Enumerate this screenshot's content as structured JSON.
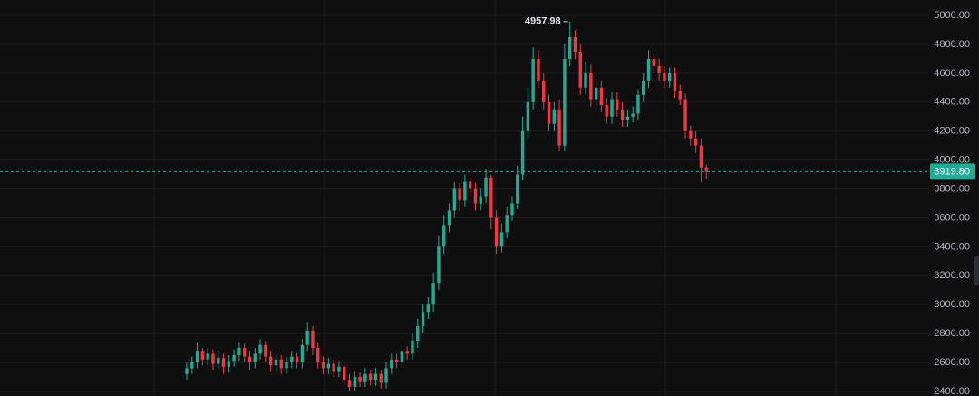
{
  "chart_data": {
    "type": "candlestick",
    "up_color": "#22ab94",
    "down_color": "#f23645",
    "open": [
      2520,
      2560,
      2600,
      2680,
      2620,
      2660,
      2590,
      2630,
      2570,
      2610,
      2650,
      2700,
      2640,
      2600,
      2660,
      2720,
      2640,
      2580,
      2620,
      2560,
      2600,
      2640,
      2600,
      2720,
      2820,
      2700,
      2600,
      2560,
      2590,
      2540,
      2570,
      2480,
      2430,
      2500,
      2470,
      2520,
      2480,
      2520,
      2460,
      2560,
      2620,
      2600,
      2680,
      2660,
      2750,
      2850,
      2950,
      3000,
      3150,
      3400,
      3550,
      3650,
      3800,
      3720,
      3850,
      3800,
      3700,
      3750,
      3880,
      3600,
      3400,
      3500,
      3620,
      3700,
      3900,
      4200,
      4400,
      4700,
      4550,
      4400,
      4250,
      4350,
      4100,
      4700,
      4850,
      4750,
      4500,
      4600,
      4420,
      4500,
      4380,
      4300,
      4420,
      4350,
      4280,
      4300,
      4320,
      4450,
      4550,
      4700,
      4650,
      4600,
      4550,
      4600,
      4480,
      4420,
      4200,
      4150,
      4100,
      3950
    ],
    "high": [
      2600,
      2640,
      2740,
      2700,
      2700,
      2690,
      2680,
      2660,
      2650,
      2690,
      2740,
      2730,
      2680,
      2700,
      2760,
      2750,
      2680,
      2660,
      2650,
      2640,
      2680,
      2670,
      2760,
      2880,
      2850,
      2740,
      2640,
      2630,
      2620,
      2610,
      2600,
      2520,
      2540,
      2530,
      2560,
      2550,
      2560,
      2550,
      2600,
      2660,
      2660,
      2720,
      2710,
      2800,
      2900,
      3000,
      3050,
      3220,
      3480,
      3620,
      3700,
      3850,
      3840,
      3900,
      3880,
      3840,
      3800,
      3940,
      3900,
      3650,
      3560,
      3680,
      3750,
      3960,
      4300,
      4500,
      4780,
      4760,
      4600,
      4450,
      4400,
      4420,
      4800,
      4957.98,
      4900,
      4800,
      4680,
      4660,
      4560,
      4550,
      4430,
      4470,
      4470,
      4400,
      4350,
      4370,
      4490,
      4600,
      4760,
      4740,
      4700,
      4650,
      4640,
      4640,
      4520,
      4460,
      4240,
      4200,
      4150,
      3970
    ],
    "low": [
      2480,
      2520,
      2560,
      2580,
      2580,
      2550,
      2550,
      2520,
      2530,
      2570,
      2610,
      2600,
      2550,
      2560,
      2620,
      2600,
      2540,
      2540,
      2520,
      2520,
      2560,
      2560,
      2560,
      2680,
      2650,
      2560,
      2520,
      2520,
      2500,
      2500,
      2440,
      2400,
      2400,
      2430,
      2430,
      2440,
      2440,
      2420,
      2420,
      2520,
      2560,
      2560,
      2620,
      2620,
      2700,
      2800,
      2900,
      2950,
      3100,
      3350,
      3500,
      3600,
      3650,
      3680,
      3750,
      3650,
      3650,
      3700,
      3520,
      3350,
      3360,
      3460,
      3580,
      3660,
      3860,
      4150,
      4350,
      4500,
      4350,
      4200,
      4200,
      4060,
      4060,
      4650,
      4700,
      4450,
      4450,
      4370,
      4370,
      4330,
      4250,
      4250,
      4300,
      4230,
      4230,
      4260,
      4280,
      4400,
      4500,
      4600,
      4550,
      4500,
      4500,
      4430,
      4380,
      4150,
      4100,
      4050,
      3850,
      3870
    ],
    "close": [
      2560,
      2600,
      2680,
      2620,
      2660,
      2590,
      2630,
      2570,
      2610,
      2650,
      2700,
      2640,
      2600,
      2660,
      2720,
      2640,
      2580,
      2620,
      2560,
      2600,
      2640,
      2600,
      2720,
      2820,
      2700,
      2600,
      2560,
      2590,
      2540,
      2570,
      2480,
      2430,
      2500,
      2470,
      2520,
      2480,
      2520,
      2460,
      2560,
      2620,
      2600,
      2680,
      2660,
      2750,
      2850,
      2950,
      3000,
      3150,
      3400,
      3550,
      3650,
      3800,
      3720,
      3850,
      3800,
      3700,
      3750,
      3880,
      3600,
      3400,
      3500,
      3620,
      3700,
      3900,
      4200,
      4400,
      4700,
      4550,
      4400,
      4250,
      4350,
      4100,
      4700,
      4850,
      4750,
      4500,
      4600,
      4420,
      4500,
      4380,
      4300,
      4420,
      4350,
      4280,
      4300,
      4320,
      4450,
      4550,
      4700,
      4650,
      4600,
      4550,
      4600,
      4480,
      4420,
      4200,
      4150,
      4100,
      3950,
      3919.8
    ],
    "ylim": [
      2368,
      5107
    ],
    "yticks": [
      {
        "value": 2400,
        "label": "2400.00"
      },
      {
        "value": 2600,
        "label": "2600.00"
      },
      {
        "value": 2800,
        "label": "2800.00"
      },
      {
        "value": 3000,
        "label": "3000.00"
      },
      {
        "value": 3200,
        "label": "3200.00"
      },
      {
        "value": 3400,
        "label": "3400.00"
      },
      {
        "value": 3600,
        "label": "3600.00"
      },
      {
        "value": 3800,
        "label": "3800.00"
      },
      {
        "value": 4000,
        "label": "4000.00"
      },
      {
        "value": 4200,
        "label": "4200.00"
      },
      {
        "value": 4400,
        "label": "4400.00"
      },
      {
        "value": 4600,
        "label": "4600.00"
      },
      {
        "value": 4800,
        "label": "4800.00"
      },
      {
        "value": 5000,
        "label": "5000.00"
      }
    ],
    "grid": true,
    "last_price": {
      "value": 3919.8,
      "label": "3919.80"
    },
    "max_annotation": {
      "value": 4957.98,
      "label": "4957.98"
    }
  }
}
